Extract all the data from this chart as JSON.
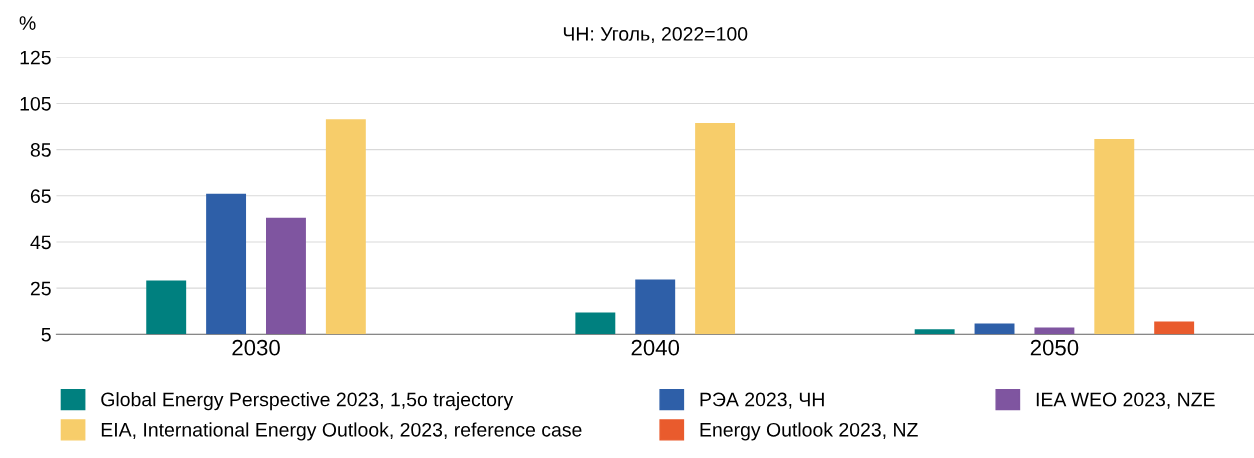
{
  "chart_data": {
    "type": "bar",
    "title": "ЧН: Уголь, 2022=100",
    "ylabel": "%",
    "categories": [
      "2030",
      "2040",
      "2050"
    ],
    "series": [
      {
        "name": "Global Energy Perspective 2023, 1,5o trajectory",
        "color": "#00807f",
        "values": [
          28.3,
          14.5,
          7.2
        ]
      },
      {
        "name": "РЭА 2023, ЧН",
        "color": "#2e5fa8",
        "values": [
          65.9,
          28.7,
          9.7
        ]
      },
      {
        "name": "IEA WEO 2023, NZE",
        "color": "#7f55a0",
        "values": [
          55.5,
          null,
          8
        ]
      },
      {
        "name": "EIA, International Energy Outlook, 2023, reference case",
        "color": "#f7cd6a",
        "values": [
          98.2,
          96.5,
          89.6
        ]
      },
      {
        "name": "Energy Outlook 2023, NZ",
        "color": "#e95b2d",
        "values": [
          null,
          null,
          10.6
        ]
      }
    ],
    "ylim": [
      5,
      125
    ],
    "yticks": [
      5,
      25,
      45,
      65,
      85,
      105,
      125
    ],
    "grid": "y",
    "legend": "bottom"
  }
}
